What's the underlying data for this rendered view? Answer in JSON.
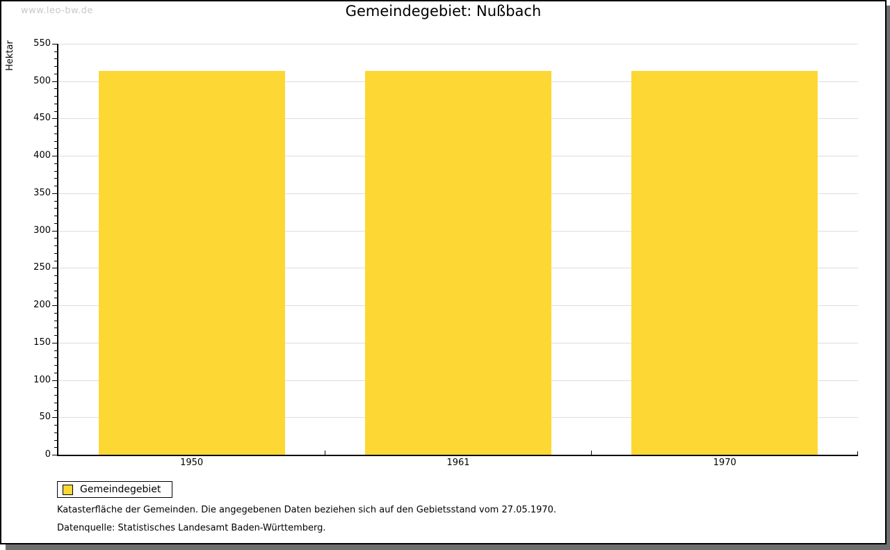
{
  "watermark": "www.leo-bw.de",
  "header": {
    "title": "Gemeindegebiet: Nußbach"
  },
  "chart_data": {
    "type": "bar",
    "title": "Gemeindegebiet: Nußbach",
    "categories": [
      "1950",
      "1961",
      "1970"
    ],
    "series": [
      {
        "name": "Gemeindegebiet",
        "values": [
          514,
          514,
          514
        ]
      }
    ],
    "xlabel": "",
    "ylabel": "Hektar",
    "ylim": [
      0,
      550
    ],
    "y_major_step": 50,
    "y_minor_step": 10,
    "grid": true,
    "bar_width_fraction": 0.7,
    "legend_position": "bottom-left",
    "bar_color": "#FDD835"
  },
  "legend": {
    "items": [
      {
        "label": "Gemeindegebiet",
        "color": "#FDD835"
      }
    ]
  },
  "footnotes": [
    "Katasterfläche der Gemeinden. Die angegebenen Daten beziehen sich auf den Gebietsstand vom 27.05.1970.",
    "Datenquelle: Statistisches Landesamt Baden-Württemberg."
  ],
  "colors": {
    "bar": "#FDD835",
    "gridline": "#DDDDDD",
    "axis": "#000000",
    "frame_shadow": "#6F6F6F",
    "watermark": "#C8C8C8"
  }
}
